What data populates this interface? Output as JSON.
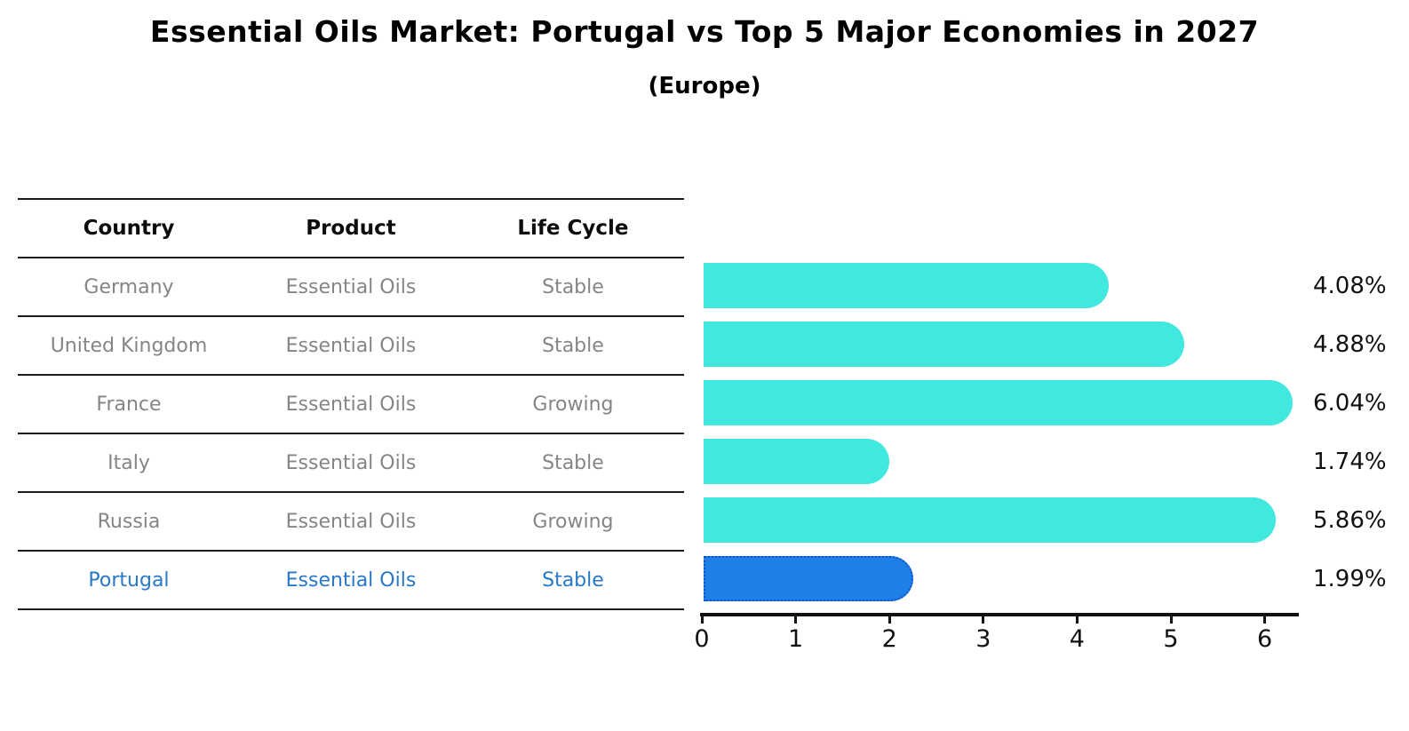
{
  "title": "Essential Oils Market: Portugal vs Top 5 Major Economies in 2027",
  "subtitle": "(Europe)",
  "table": {
    "headers": [
      "Country",
      "Product",
      "Life Cycle"
    ],
    "rows": [
      {
        "country": "Germany",
        "product": "Essential Oils",
        "life_cycle": "Stable",
        "highlighted": false
      },
      {
        "country": "United Kingdom",
        "product": "Essential Oils",
        "life_cycle": "Stable",
        "highlighted": false
      },
      {
        "country": "France",
        "product": "Essential Oils",
        "life_cycle": "Growing",
        "highlighted": false
      },
      {
        "country": "Italy",
        "product": "Essential Oils",
        "life_cycle": "Stable",
        "highlighted": false
      },
      {
        "country": "Russia",
        "product": "Essential Oils",
        "life_cycle": "Growing",
        "highlighted": false
      },
      {
        "country": "Portugal",
        "product": "Essential Oils",
        "life_cycle": "Stable",
        "highlighted": true
      }
    ]
  },
  "chart_data": {
    "type": "bar",
    "orientation": "horizontal",
    "title": "Essential Oils Market: Portugal vs Top 5 Major Economies in 2027",
    "subtitle": "(Europe)",
    "categories": [
      "Germany",
      "United Kingdom",
      "France",
      "Italy",
      "Russia",
      "Portugal"
    ],
    "values": [
      4.08,
      4.88,
      6.04,
      1.74,
      5.86,
      1.99
    ],
    "value_labels": [
      "4.08%",
      "4.88%",
      "6.04%",
      "1.74%",
      "5.86%",
      "1.99%"
    ],
    "xticks": [
      0,
      1,
      2,
      3,
      4,
      5,
      6
    ],
    "xlim": [
      0,
      6.36
    ],
    "grid": false,
    "legend": "none",
    "highlight_index": 5,
    "colors": {
      "bar": "#40E8E0",
      "highlight_fill": "#1E7FE6",
      "highlight_border": "#0D52C8",
      "highlight_text": "#2878C8",
      "row_text": "#858585",
      "header_text": "#0D0D0D",
      "axis": "#111111"
    }
  }
}
